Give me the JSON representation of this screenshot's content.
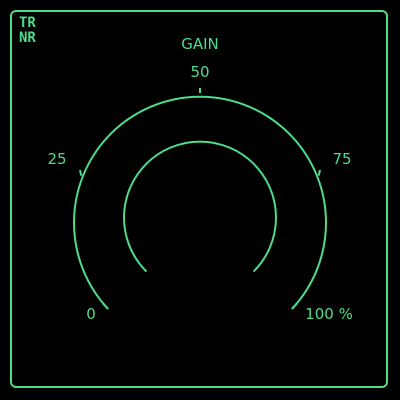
{
  "logo": {
    "line1": "TR",
    "line2": "NR"
  },
  "gauge": {
    "title": "GAIN",
    "min_label": "0",
    "max_label": "100 %",
    "ticks": [
      {
        "value": 25,
        "label": "25"
      },
      {
        "value": 50,
        "label": "50"
      },
      {
        "value": 75,
        "label": "75"
      }
    ],
    "min": 0,
    "max": 100
  },
  "colors": {
    "accent": "#4fdc8a",
    "background": "#000000"
  }
}
